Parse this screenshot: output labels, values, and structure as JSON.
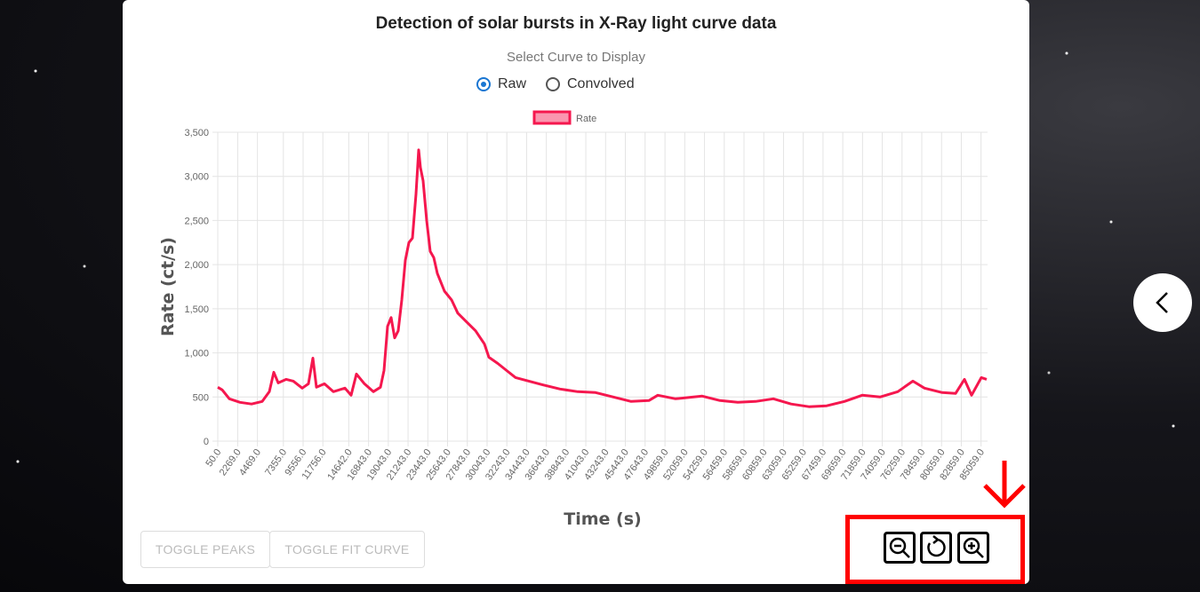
{
  "header": {
    "title": "Detection of solar bursts in X-Ray light curve data"
  },
  "curve_select": {
    "label": "Select Curve to Display",
    "options": [
      "Raw",
      "Convolved"
    ],
    "selected": 0
  },
  "chart_data": {
    "type": "line",
    "xlabel": "Time (s)",
    "ylabel": "Rate (ct/s)",
    "grid": true,
    "legend": "top",
    "x": [
      50,
      545,
      1337,
      2525,
      3812,
      5000,
      5792,
      6287,
      6782,
      7673,
      8465,
      9455,
      10148,
      10643,
      11039,
      11930,
      12920,
      14207,
      14900,
      15494,
      16385,
      17375,
      18167,
      18563,
      18959,
      19355,
      19751,
      20147,
      20543,
      20939,
      21335,
      21731,
      22127,
      22424,
      22622,
      22919,
      23315,
      23711,
      24107,
      24503,
      25295,
      26087,
      26780,
      27770,
      28760,
      29750,
      30245,
      31235,
      32225,
      33215,
      34700,
      36185,
      38165,
      40145,
      42125,
      44105,
      46085,
      48065,
      49055,
      51035,
      54005,
      55985,
      57965,
      59945,
      61925,
      63905,
      65885,
      67865,
      69845,
      71825,
      73805,
      75785,
      77468,
      78755,
      80735,
      82220,
      83210,
      84002,
      85091,
      85685
    ],
    "series": [
      {
        "name": "Rate",
        "color": "#f5174e",
        "values": [
          610,
          580,
          480,
          440,
          420,
          450,
          560,
          780,
          660,
          700,
          680,
          600,
          650,
          940,
          610,
          650,
          560,
          600,
          520,
          760,
          650,
          560,
          610,
          800,
          1300,
          1400,
          1170,
          1250,
          1600,
          2050,
          2250,
          2300,
          2800,
          3300,
          3100,
          2950,
          2500,
          2150,
          2080,
          1900,
          1700,
          1600,
          1450,
          1350,
          1250,
          1100,
          950,
          880,
          800,
          720,
          680,
          640,
          590,
          560,
          550,
          500,
          450,
          460,
          520,
          480,
          510,
          460,
          440,
          450,
          480,
          420,
          390,
          400,
          450,
          520,
          500,
          560,
          680,
          600,
          550,
          540,
          700,
          520,
          720,
          700
        ]
      }
    ],
    "xlim": [
      50,
      85784
    ],
    "xticks": [
      {
        "value": 50,
        "label": "50.0"
      },
      {
        "value": 2269,
        "label": "2269.0"
      },
      {
        "value": 4469,
        "label": "4469.0"
      },
      {
        "value": 7355,
        "label": "7355.0"
      },
      {
        "value": 9556,
        "label": "9556.0"
      },
      {
        "value": 11756,
        "label": "11756.0"
      },
      {
        "value": 14642,
        "label": "14642.0"
      },
      {
        "value": 16843,
        "label": "16843.0"
      },
      {
        "value": 19043,
        "label": "19043.0"
      },
      {
        "value": 21243,
        "label": "21243.0"
      },
      {
        "value": 23443,
        "label": "23443.0"
      },
      {
        "value": 25643,
        "label": "25643.0"
      },
      {
        "value": 27843,
        "label": "27843.0"
      },
      {
        "value": 30043,
        "label": "30043.0"
      },
      {
        "value": 32243,
        "label": "32243.0"
      },
      {
        "value": 34443,
        "label": "34443.0"
      },
      {
        "value": 36643,
        "label": "36643.0"
      },
      {
        "value": 38843,
        "label": "38843.0"
      },
      {
        "value": 41043,
        "label": "41043.0"
      },
      {
        "value": 43243,
        "label": "43243.0"
      },
      {
        "value": 45443,
        "label": "45443.0"
      },
      {
        "value": 47643,
        "label": "47643.0"
      },
      {
        "value": 49859,
        "label": "49859.0"
      },
      {
        "value": 52059,
        "label": "52059.0"
      },
      {
        "value": 54259,
        "label": "54259.0"
      },
      {
        "value": 56459,
        "label": "56459.0"
      },
      {
        "value": 58659,
        "label": "58659.0"
      },
      {
        "value": 60859,
        "label": "60859.0"
      },
      {
        "value": 63059,
        "label": "63059.0"
      },
      {
        "value": 65259,
        "label": "65259.0"
      },
      {
        "value": 67459,
        "label": "67459.0"
      },
      {
        "value": 69659,
        "label": "69659.0"
      },
      {
        "value": 71859,
        "label": "71859.0"
      },
      {
        "value": 74059,
        "label": "74059.0"
      },
      {
        "value": 76259,
        "label": "76259.0"
      },
      {
        "value": 78459,
        "label": "78459.0"
      },
      {
        "value": 80659,
        "label": "80659.0"
      },
      {
        "value": 82859,
        "label": "82859.0"
      },
      {
        "value": 85059,
        "label": "85059.0"
      }
    ],
    "ylim": [
      0,
      3500
    ],
    "yticks": [
      0,
      500,
      {
        "value": 1000,
        "label": "1,000"
      },
      {
        "value": 1500,
        "label": "1,500"
      },
      {
        "value": 2000,
        "label": "2,000"
      },
      {
        "value": 2500,
        "label": "2,500"
      },
      {
        "value": 3000,
        "label": "3,000"
      },
      {
        "value": 3500,
        "label": "3,500"
      }
    ]
  },
  "buttons": [
    "TOGGLE PEAKS",
    "TOGGLE FIT CURVE"
  ]
}
